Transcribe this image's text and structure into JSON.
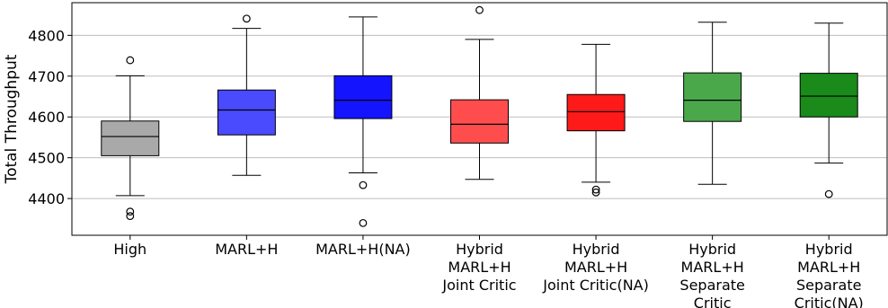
{
  "chart_data": {
    "type": "box",
    "ylabel": "Total Throughput",
    "ylim": [
      4310,
      4880
    ],
    "yticks": [
      4400,
      4500,
      4600,
      4700,
      4800
    ],
    "grid": "y",
    "categories": [
      {
        "label": [
          "High"
        ],
        "color": "#a9a9a9",
        "whisker_low": 4407,
        "q1": 4505,
        "median": 4552,
        "q3": 4590,
        "whisker_high": 4701,
        "outliers": [
          4368,
          4357,
          4739
        ]
      },
      {
        "label": [
          "MARL+H"
        ],
        "color": "#4a4aff",
        "whisker_low": 4457,
        "q1": 4556,
        "median": 4617,
        "q3": 4666,
        "whisker_high": 4817,
        "outliers": [
          4841
        ]
      },
      {
        "label": [
          "MARL+H(NA)"
        ],
        "color": "#1414ff",
        "whisker_low": 4463,
        "q1": 4596,
        "median": 4641,
        "q3": 4701,
        "whisker_high": 4845,
        "outliers": [
          4433,
          4340
        ]
      },
      {
        "label": [
          "Hybrid",
          "MARL+H",
          "Joint Critic"
        ],
        "color": "#ff4d4d",
        "whisker_low": 4447,
        "q1": 4536,
        "median": 4582,
        "q3": 4642,
        "whisker_high": 4790,
        "outliers": [
          4862
        ]
      },
      {
        "label": [
          "Hybrid",
          "MARL+H",
          "Joint Critic(NA)"
        ],
        "color": "#ff1a1a",
        "whisker_low": 4440,
        "q1": 4566,
        "median": 4613,
        "q3": 4655,
        "whisker_high": 4778,
        "outliers": [
          4422,
          4415
        ]
      },
      {
        "label": [
          "Hybrid",
          "MARL+H",
          "Separate",
          "Critic"
        ],
        "color": "#4aa84a",
        "whisker_low": 4435,
        "q1": 4589,
        "median": 4641,
        "q3": 4708,
        "whisker_high": 4832,
        "outliers": []
      },
      {
        "label": [
          "Hybrid",
          "MARL+H",
          "Separate",
          "Critic(NA)"
        ],
        "color": "#1a8a1a",
        "whisker_low": 4487,
        "q1": 4600,
        "median": 4651,
        "q3": 4707,
        "whisker_high": 4830,
        "outliers": [
          4411
        ]
      }
    ]
  }
}
